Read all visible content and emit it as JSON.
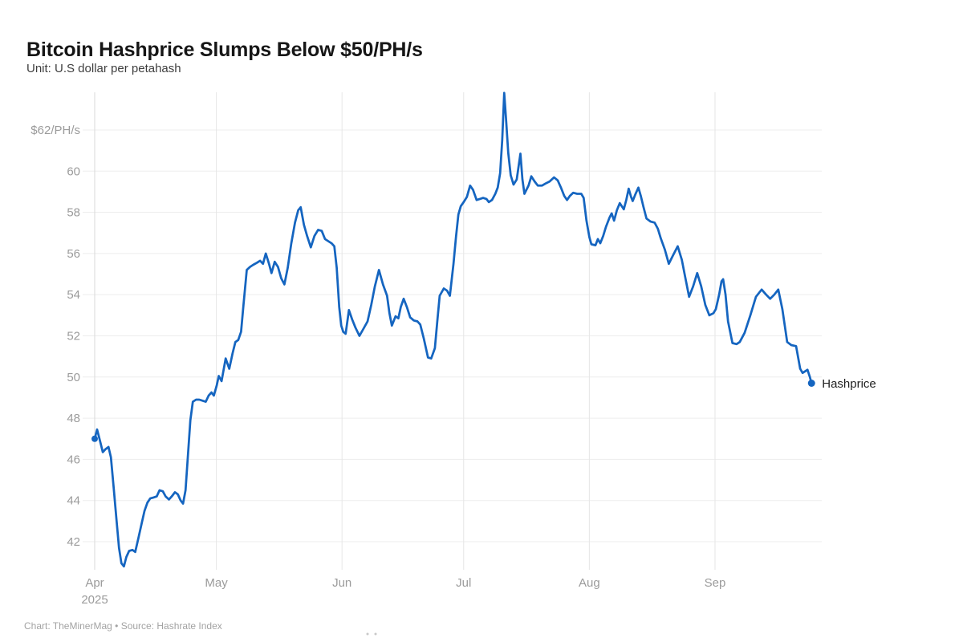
{
  "header": {
    "title": "Bitcoin Hashprice Slumps Below $50/PH/s",
    "subtitle": "Unit: U.S dollar per petahash"
  },
  "footer": {
    "attribution": "Chart: TheMinerMag • Source: Hashrate Index"
  },
  "colors": {
    "line": "#1565c0",
    "grid_h": "#ededed",
    "grid_v": "#e6e6e6",
    "axis": "#d9d9d9",
    "tick_text": "#9b9b9b",
    "title_text": "#161616",
    "subtitle_text": "#3e3e3e",
    "footer_text": "#a3a3a3",
    "annotation_text": "#1f1f1f",
    "background": "#ffffff",
    "footer_dots": "#c9c9c9"
  },
  "chart_data": {
    "type": "line",
    "title": "Bitcoin Hashprice Slumps Below $50/PH/s",
    "unit_label": "Unit: U.S dollar per petahash",
    "source": "Chart: TheMinerMag • Source: Hashrate Index",
    "grid": true,
    "legend_position": "end-of-line-label",
    "x_unit": "days since 2025-04-01",
    "x_range_days": [
      0,
      178
    ],
    "x_axis": {
      "ticks": [
        {
          "day": 0,
          "label": "Apr",
          "sublabel": "2025"
        },
        {
          "day": 30,
          "label": "May"
        },
        {
          "day": 61,
          "label": "Jun"
        },
        {
          "day": 91,
          "label": "Jul"
        },
        {
          "day": 122,
          "label": "Aug"
        },
        {
          "day": 153,
          "label": "Sep"
        }
      ]
    },
    "y_axis": {
      "unit": "$/PH/s",
      "min": 40.6,
      "max": 63.9,
      "ticks": [
        {
          "value": 42,
          "label": "42"
        },
        {
          "value": 44,
          "label": "44"
        },
        {
          "value": 46,
          "label": "46"
        },
        {
          "value": 48,
          "label": "48"
        },
        {
          "value": 50,
          "label": "50"
        },
        {
          "value": 52,
          "label": "52"
        },
        {
          "value": 54,
          "label": "54"
        },
        {
          "value": 56,
          "label": "56"
        },
        {
          "value": 58,
          "label": "58"
        },
        {
          "value": 60,
          "label": "60"
        },
        {
          "value": 62,
          "label": "$62/PH/s"
        }
      ]
    },
    "annotations": {
      "end_label": "Hashprice"
    },
    "key_points": {
      "start": 47.0,
      "low": 40.8,
      "peak": 63.8,
      "end": 49.7
    },
    "series": [
      {
        "name": "Hashprice",
        "color": "#1565c0",
        "start_marker": true,
        "end_marker": true,
        "points": [
          [
            0,
            47.0
          ],
          [
            0.6,
            47.45
          ],
          [
            1.3,
            46.9
          ],
          [
            2,
            46.35
          ],
          [
            2.7,
            46.5
          ],
          [
            3.4,
            46.6
          ],
          [
            4,
            46.1
          ],
          [
            4.7,
            44.6
          ],
          [
            5.4,
            43.0
          ],
          [
            6,
            41.7
          ],
          [
            6.6,
            40.95
          ],
          [
            7.2,
            40.8
          ],
          [
            7.8,
            41.25
          ],
          [
            8.5,
            41.55
          ],
          [
            9.3,
            41.6
          ],
          [
            10,
            41.5
          ],
          [
            10.8,
            42.2
          ],
          [
            11.6,
            42.9
          ],
          [
            12.3,
            43.5
          ],
          [
            13,
            43.9
          ],
          [
            13.7,
            44.1
          ],
          [
            14.5,
            44.15
          ],
          [
            15.3,
            44.2
          ],
          [
            16,
            44.5
          ],
          [
            16.8,
            44.45
          ],
          [
            17.5,
            44.2
          ],
          [
            18.3,
            44.05
          ],
          [
            19,
            44.2
          ],
          [
            19.8,
            44.4
          ],
          [
            20.5,
            44.3
          ],
          [
            21.2,
            44.0
          ],
          [
            21.8,
            43.85
          ],
          [
            22.4,
            44.5
          ],
          [
            23,
            46.2
          ],
          [
            23.6,
            47.9
          ],
          [
            24.2,
            48.8
          ],
          [
            25,
            48.9
          ],
          [
            25.8,
            48.9
          ],
          [
            26.6,
            48.85
          ],
          [
            27.4,
            48.8
          ],
          [
            28.1,
            49.1
          ],
          [
            28.8,
            49.25
          ],
          [
            29.4,
            49.1
          ],
          [
            30.1,
            49.6
          ],
          [
            30.6,
            50.05
          ],
          [
            31.3,
            49.8
          ],
          [
            32.3,
            50.9
          ],
          [
            33.2,
            50.4
          ],
          [
            34,
            51.15
          ],
          [
            34.7,
            51.7
          ],
          [
            35.4,
            51.8
          ],
          [
            36.1,
            52.2
          ],
          [
            36.7,
            53.5
          ],
          [
            37.5,
            55.2
          ],
          [
            38.3,
            55.35
          ],
          [
            39.1,
            55.45
          ],
          [
            40,
            55.55
          ],
          [
            40.8,
            55.65
          ],
          [
            41.5,
            55.5
          ],
          [
            42.2,
            56.0
          ],
          [
            43,
            55.5
          ],
          [
            43.6,
            55.05
          ],
          [
            44.4,
            55.6
          ],
          [
            45.2,
            55.35
          ],
          [
            46,
            54.8
          ],
          [
            46.8,
            54.5
          ],
          [
            47.6,
            55.3
          ],
          [
            48.5,
            56.5
          ],
          [
            49.4,
            57.5
          ],
          [
            50.2,
            58.1
          ],
          [
            50.8,
            58.25
          ],
          [
            51.6,
            57.4
          ],
          [
            52.4,
            56.85
          ],
          [
            53.3,
            56.3
          ],
          [
            54.2,
            56.85
          ],
          [
            55.1,
            57.15
          ],
          [
            56,
            57.1
          ],
          [
            56.8,
            56.7
          ],
          [
            57.6,
            56.6
          ],
          [
            58.4,
            56.5
          ],
          [
            59.1,
            56.35
          ],
          [
            59.7,
            55.3
          ],
          [
            60.3,
            53.4
          ],
          [
            60.8,
            52.5
          ],
          [
            61.3,
            52.2
          ],
          [
            61.9,
            52.1
          ],
          [
            62.7,
            53.25
          ],
          [
            63.5,
            52.8
          ],
          [
            64.3,
            52.4
          ],
          [
            65.3,
            52.0
          ],
          [
            66.3,
            52.35
          ],
          [
            67.3,
            52.7
          ],
          [
            68.2,
            53.5
          ],
          [
            69.1,
            54.4
          ],
          [
            70.1,
            55.2
          ],
          [
            71.1,
            54.5
          ],
          [
            72.1,
            53.95
          ],
          [
            72.7,
            53.1
          ],
          [
            73.3,
            52.5
          ],
          [
            74.2,
            52.95
          ],
          [
            74.9,
            52.85
          ],
          [
            75.5,
            53.4
          ],
          [
            76.2,
            53.8
          ],
          [
            77,
            53.4
          ],
          [
            77.8,
            52.9
          ],
          [
            78.7,
            52.75
          ],
          [
            79.6,
            52.7
          ],
          [
            80.3,
            52.55
          ],
          [
            81.2,
            51.85
          ],
          [
            82.2,
            50.95
          ],
          [
            83,
            50.9
          ],
          [
            83.9,
            51.4
          ],
          [
            84.5,
            52.7
          ],
          [
            85.1,
            53.95
          ],
          [
            86.1,
            54.3
          ],
          [
            86.9,
            54.2
          ],
          [
            87.6,
            53.95
          ],
          [
            88.5,
            55.5
          ],
          [
            89.1,
            56.8
          ],
          [
            89.7,
            57.9
          ],
          [
            90.3,
            58.3
          ],
          [
            91,
            58.5
          ],
          [
            91.8,
            58.75
          ],
          [
            92.6,
            59.3
          ],
          [
            93.3,
            59.1
          ],
          [
            94.2,
            58.6
          ],
          [
            95,
            58.65
          ],
          [
            95.8,
            58.7
          ],
          [
            96.6,
            58.65
          ],
          [
            97.2,
            58.5
          ],
          [
            98,
            58.6
          ],
          [
            98.8,
            58.9
          ],
          [
            99.4,
            59.2
          ],
          [
            100,
            59.9
          ],
          [
            100.5,
            61.5
          ],
          [
            101,
            63.8
          ],
          [
            101.5,
            62.4
          ],
          [
            102,
            60.9
          ],
          [
            102.6,
            59.8
          ],
          [
            103.3,
            59.35
          ],
          [
            104.1,
            59.6
          ],
          [
            105,
            60.85
          ],
          [
            105.5,
            59.6
          ],
          [
            106,
            58.9
          ],
          [
            107,
            59.3
          ],
          [
            107.7,
            59.75
          ],
          [
            108.5,
            59.5
          ],
          [
            109.3,
            59.3
          ],
          [
            110.3,
            59.3
          ],
          [
            111.2,
            59.4
          ],
          [
            112.2,
            59.5
          ],
          [
            113.3,
            59.7
          ],
          [
            114.2,
            59.55
          ],
          [
            115,
            59.2
          ],
          [
            115.8,
            58.8
          ],
          [
            116.5,
            58.6
          ],
          [
            117.2,
            58.8
          ],
          [
            118,
            58.95
          ],
          [
            119,
            58.9
          ],
          [
            120,
            58.9
          ],
          [
            120.6,
            58.7
          ],
          [
            121.3,
            57.6
          ],
          [
            122,
            56.8
          ],
          [
            122.5,
            56.45
          ],
          [
            123.5,
            56.4
          ],
          [
            124.1,
            56.7
          ],
          [
            124.7,
            56.5
          ],
          [
            125.4,
            56.85
          ],
          [
            126.1,
            57.3
          ],
          [
            127,
            57.75
          ],
          [
            127.5,
            57.95
          ],
          [
            128.1,
            57.6
          ],
          [
            128.8,
            58.1
          ],
          [
            129.5,
            58.45
          ],
          [
            130.5,
            58.15
          ],
          [
            131.1,
            58.6
          ],
          [
            131.7,
            59.15
          ],
          [
            132.3,
            58.75
          ],
          [
            132.7,
            58.55
          ],
          [
            133.4,
            58.9
          ],
          [
            134.1,
            59.2
          ],
          [
            134.7,
            58.8
          ],
          [
            135.3,
            58.3
          ],
          [
            136.1,
            57.7
          ],
          [
            137.1,
            57.55
          ],
          [
            138.1,
            57.5
          ],
          [
            138.9,
            57.2
          ],
          [
            139.6,
            56.75
          ],
          [
            140.6,
            56.2
          ],
          [
            141.6,
            55.5
          ],
          [
            142.6,
            55.9
          ],
          [
            143.8,
            56.35
          ],
          [
            144.8,
            55.7
          ],
          [
            145.6,
            54.9
          ],
          [
            146.6,
            53.9
          ],
          [
            147.6,
            54.4
          ],
          [
            148.6,
            55.05
          ],
          [
            149.6,
            54.4
          ],
          [
            150.6,
            53.5
          ],
          [
            151.6,
            53.0
          ],
          [
            152.6,
            53.1
          ],
          [
            153.2,
            53.3
          ],
          [
            154,
            54.0
          ],
          [
            154.6,
            54.65
          ],
          [
            155,
            54.75
          ],
          [
            155.6,
            54.0
          ],
          [
            156.2,
            52.7
          ],
          [
            157.3,
            51.65
          ],
          [
            158.3,
            51.6
          ],
          [
            159.1,
            51.7
          ],
          [
            160.3,
            52.15
          ],
          [
            161.7,
            53.0
          ],
          [
            163.1,
            53.9
          ],
          [
            164.5,
            54.25
          ],
          [
            165.6,
            54.0
          ],
          [
            166.6,
            53.8
          ],
          [
            167.6,
            54.0
          ],
          [
            168.6,
            54.25
          ],
          [
            169.6,
            53.3
          ],
          [
            170.8,
            51.7
          ],
          [
            171.8,
            51.55
          ],
          [
            173,
            51.5
          ],
          [
            174,
            50.4
          ],
          [
            174.6,
            50.2
          ],
          [
            175.8,
            50.35
          ],
          [
            176.4,
            50.0
          ],
          [
            176.8,
            49.7
          ]
        ]
      }
    ]
  }
}
